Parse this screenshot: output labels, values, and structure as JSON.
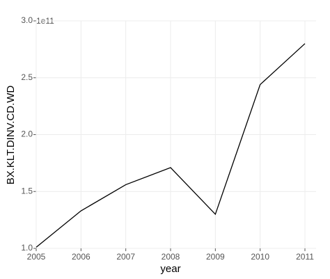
{
  "chart_data": {
    "type": "line",
    "x_label": "year",
    "y_label": "BX.KLT.DINV.CD.WD",
    "y_offset_label": "1e11",
    "x": [
      2005,
      2006,
      2007,
      2008,
      2009,
      2010,
      2011
    ],
    "series": [
      {
        "color": "#000000",
        "values": [
          1.01,
          1.33,
          1.56,
          1.71,
          1.3,
          2.44,
          2.8
        ]
      }
    ],
    "xlim": [
      2005,
      2011
    ],
    "xticks": [
      2005,
      2006,
      2007,
      2008,
      2009,
      2010,
      2011
    ],
    "ylim": [
      1,
      3
    ],
    "yticks": [
      {
        "value": 1,
        "label": "1.0"
      },
      1.5,
      {
        "value": 2,
        "label": "2.0"
      },
      2.5,
      {
        "value": 3,
        "label": "3.0"
      }
    ],
    "grid": true
  }
}
